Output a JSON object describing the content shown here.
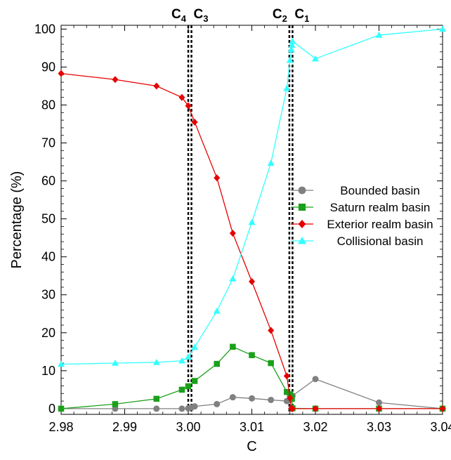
{
  "chart_data": {
    "type": "line",
    "xlabel": "C",
    "ylabel": "Percentage (%)",
    "xlim": [
      2.98,
      3.04
    ],
    "ylim": [
      -1.5,
      101
    ],
    "x_ticks": [
      "2.98",
      "2.99",
      "3.00",
      "3.01",
      "3.02",
      "3.03",
      "3.04"
    ],
    "y_ticks": [
      "0",
      "10",
      "20",
      "30",
      "40",
      "50",
      "60",
      "70",
      "80",
      "90",
      "100"
    ],
    "legend_position": "right",
    "vertical_lines": [
      {
        "label": "C",
        "subscript": "4",
        "x": 3.0,
        "align": "end"
      },
      {
        "label": "C",
        "subscript": "3",
        "x": 3.0005,
        "align": "start"
      },
      {
        "label": "C",
        "subscript": "2",
        "x": 3.0159,
        "align": "end"
      },
      {
        "label": "C",
        "subscript": "1",
        "x": 3.0164,
        "align": "start"
      }
    ],
    "series": [
      {
        "name": "Bounded basin",
        "color": "#808080",
        "marker": "circle",
        "x": [
          2.98,
          2.9885,
          2.995,
          2.999,
          3.0,
          3.0005,
          3.001,
          3.0045,
          3.007,
          3.01,
          3.013,
          3.0155,
          3.016,
          3.0162,
          3.0163,
          3.0164,
          3.02,
          3.03,
          3.04
        ],
        "y": [
          0,
          0,
          0,
          0,
          0.1,
          0.3,
          0.6,
          1.2,
          3.0,
          2.7,
          2.3,
          2.0,
          2.3,
          2.6,
          3.0,
          3.4,
          7.8,
          1.6,
          0
        ]
      },
      {
        "name": "Saturn realm basin",
        "color": "#1aa01a",
        "marker": "square",
        "x": [
          2.98,
          2.9885,
          2.995,
          2.999,
          3.0,
          3.001,
          3.0045,
          3.007,
          3.01,
          3.013,
          3.0155,
          3.016,
          3.0162,
          3.0163,
          3.0164,
          3.02,
          3.03,
          3.04
        ],
        "y": [
          0,
          1.2,
          2.6,
          5.0,
          5.9,
          7.3,
          11.8,
          16.3,
          14.1,
          12.0,
          4.4,
          3.8,
          3.2,
          2.6,
          0.1,
          0,
          0,
          0
        ]
      },
      {
        "name": "Exterior realm basin",
        "color": "#e60000",
        "marker": "diamond",
        "x": [
          2.98,
          2.9885,
          2.995,
          2.999,
          3.0,
          3.001,
          3.0045,
          3.007,
          3.01,
          3.013,
          3.0155,
          3.016,
          3.0162,
          3.0163,
          3.0164,
          3.02,
          3.03,
          3.04
        ],
        "y": [
          88.3,
          86.7,
          85.0,
          82.0,
          79.8,
          75.5,
          60.8,
          46.2,
          33.5,
          20.6,
          8.6,
          2.8,
          0.1,
          0,
          0,
          0,
          0,
          0
        ]
      },
      {
        "name": "Collisional basin",
        "color": "#33ffff",
        "marker": "triangle",
        "x": [
          2.98,
          2.9885,
          2.995,
          2.999,
          3.0,
          3.001,
          3.0045,
          3.007,
          3.01,
          3.013,
          3.0155,
          3.016,
          3.0162,
          3.0163,
          3.0164,
          3.02,
          3.03,
          3.04
        ],
        "y": [
          11.7,
          12.0,
          12.2,
          12.6,
          13.6,
          16.2,
          25.7,
          34.2,
          49.1,
          64.7,
          84.4,
          91.8,
          94.6,
          95.8,
          96.8,
          92.2,
          98.4,
          100
        ]
      }
    ]
  }
}
